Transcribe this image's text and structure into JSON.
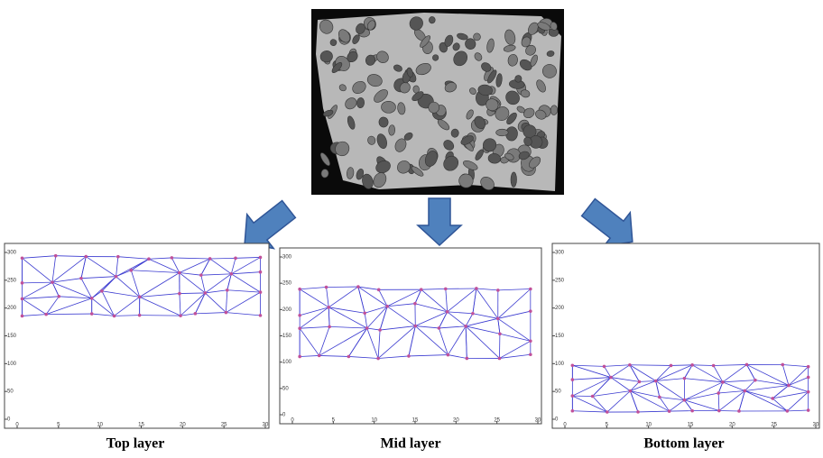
{
  "panels": [
    {
      "label": "Top layer",
      "xticks": [
        0,
        5,
        10,
        15,
        20,
        25,
        30
      ],
      "yticks": [
        0,
        50,
        100,
        150,
        200,
        250,
        300
      ]
    },
    {
      "label": "Mid layer",
      "xticks": [
        0,
        5,
        10,
        15,
        20,
        25,
        30
      ],
      "yticks": [
        0,
        50,
        100,
        150,
        200,
        250,
        300
      ]
    },
    {
      "label": "Bottom layer",
      "xticks": [
        0,
        5,
        10,
        15,
        20,
        25,
        30
      ],
      "yticks": [
        0,
        50,
        100,
        150,
        200,
        250,
        300
      ]
    }
  ]
}
